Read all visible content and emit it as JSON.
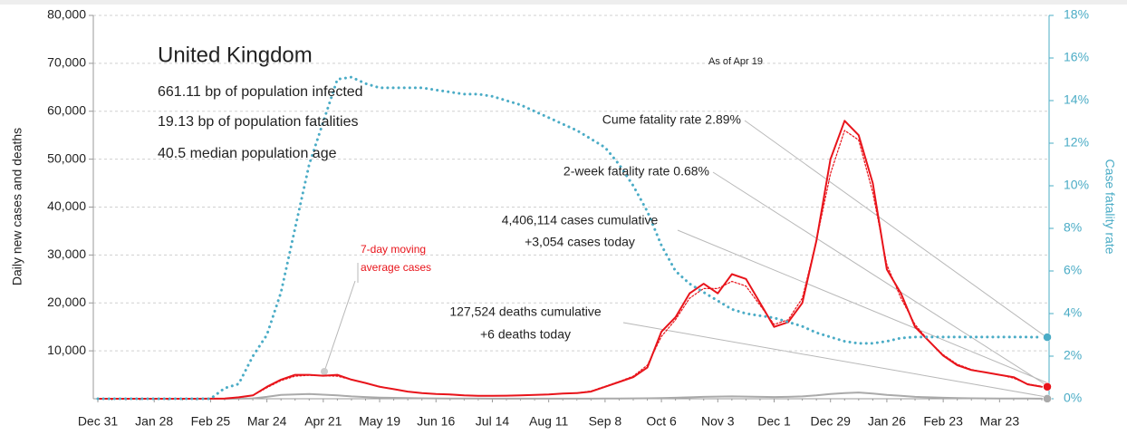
{
  "chart_data": {
    "type": "line",
    "title": "United Kingdom",
    "annotations": [
      "661.11 bp of population infected",
      "19.13 bp of population fatalities",
      "40.5 median population age",
      "As of Apr 19",
      "Cume fatality rate 2.89%",
      "2-week fatality rate 0.68%",
      "4,406,114 cases cumulative",
      "+3,054 cases today",
      "127,524 deaths cumulative",
      "+6 deaths today",
      "7-day moving",
      "average cases"
    ],
    "ylabel": "Daily new cases and deaths",
    "y2label": "Case fatality rate",
    "categories": [
      "Dec 31",
      null,
      null,
      null,
      "Jan 28",
      null,
      null,
      null,
      "Feb 25",
      null,
      null,
      null,
      "Mar 24",
      null,
      null,
      null,
      "Apr 21",
      null,
      null,
      null,
      "May 19",
      null,
      null,
      null,
      "Jun 16",
      null,
      null,
      null,
      "Jul 14",
      null,
      null,
      null,
      "Aug 11",
      null,
      null,
      null,
      "Sep 8",
      null,
      null,
      null,
      "Oct 6",
      null,
      null,
      null,
      "Nov 3",
      null,
      null,
      null,
      "Dec 1",
      null,
      null,
      null,
      "Dec 29",
      null,
      null,
      null,
      "Jan 26",
      null,
      null,
      null,
      "Feb 23",
      null,
      null,
      null,
      "Mar 23",
      null,
      null,
      null
    ],
    "series": [
      {
        "color": "#e8141b",
        "line_style": "solid",
        "axis": "y",
        "values": [
          0,
          0,
          0,
          0,
          0,
          0,
          0,
          0,
          20,
          50,
          300,
          700,
          2500,
          4000,
          5000,
          5000,
          4800,
          5000,
          4000,
          3300,
          2500,
          2000,
          1500,
          1200,
          1000,
          900,
          700,
          600,
          600,
          650,
          700,
          800,
          900,
          1100,
          1200,
          1500,
          2500,
          3500,
          4500,
          6500,
          14000,
          17000,
          22000,
          24000,
          22000,
          26000,
          25000,
          20000,
          15000,
          16000,
          20000,
          33000,
          50000,
          58000,
          55000,
          45000,
          27000,
          22000,
          15000,
          12000,
          9000,
          7000,
          6000,
          5500,
          5000,
          4500,
          3000,
          2500
        ]
      },
      {
        "color": "#e8141b",
        "line_style": "dotted",
        "axis": "y",
        "values": [
          0,
          0,
          0,
          0,
          0,
          0,
          0,
          0,
          15,
          40,
          250,
          650,
          2300,
          3800,
          4700,
          4900,
          4800,
          4700,
          4000,
          3300,
          2600,
          2000,
          1500,
          1200,
          1000,
          850,
          700,
          620,
          620,
          650,
          700,
          800,
          900,
          1050,
          1200,
          1600,
          2600,
          3600,
          4700,
          7000,
          13000,
          16500,
          21000,
          23000,
          23000,
          24500,
          23500,
          19500,
          15500,
          16500,
          21000,
          33000,
          47000,
          56000,
          54000,
          43000,
          28000,
          21000,
          15500,
          12000,
          9200,
          7200,
          6100,
          5500,
          5000,
          4300,
          3100,
          2600
        ]
      },
      {
        "color": "#aaaaaa",
        "line_style": "solid",
        "axis": "y",
        "values": [
          0,
          0,
          0,
          0,
          0,
          0,
          0,
          0,
          0,
          5,
          20,
          80,
          400,
          800,
          900,
          1000,
          850,
          700,
          500,
          350,
          250,
          180,
          130,
          100,
          80,
          60,
          40,
          30,
          20,
          15,
          12,
          10,
          10,
          10,
          12,
          15,
          30,
          50,
          70,
          100,
          150,
          200,
          300,
          400,
          450,
          500,
          450,
          400,
          350,
          400,
          500,
          700,
          1000,
          1200,
          1300,
          1100,
          800,
          600,
          400,
          300,
          200,
          150,
          100,
          70,
          50,
          40,
          30,
          20
        ]
      },
      {
        "color": "#4bacc6",
        "line_style": "dotted",
        "axis": "y2",
        "values": [
          0,
          0,
          0,
          0,
          0,
          0,
          0,
          0,
          0,
          0.5,
          0.7,
          2,
          3,
          5,
          8,
          11,
          13,
          15,
          15.1,
          14.8,
          14.6,
          14.6,
          14.6,
          14.6,
          14.5,
          14.4,
          14.3,
          14.3,
          14.2,
          14.0,
          13.8,
          13.5,
          13.2,
          12.9,
          12.6,
          12.2,
          11.8,
          11.0,
          10.0,
          8.8,
          7.2,
          6.0,
          5.4,
          5.0,
          4.6,
          4.2,
          4.0,
          3.9,
          3.8,
          3.6,
          3.4,
          3.1,
          2.9,
          2.7,
          2.6,
          2.6,
          2.7,
          2.85,
          2.9,
          2.9,
          2.9,
          2.9,
          2.9,
          2.9,
          2.9,
          2.9,
          2.9,
          2.89
        ]
      }
    ],
    "ylim": [
      0,
      80000
    ],
    "yticks": [
      {
        "value": 10000,
        "label": "10,000"
      },
      {
        "value": 20000,
        "label": "20,000"
      },
      {
        "value": 30000,
        "label": "30,000"
      },
      {
        "value": 40000,
        "label": "40,000"
      },
      {
        "value": 50000,
        "label": "50,000"
      },
      {
        "value": 60000,
        "label": "60,000"
      },
      {
        "value": 70000,
        "label": "70,000"
      },
      {
        "value": 80000,
        "label": "80,000"
      }
    ],
    "y2lim": [
      0,
      18
    ],
    "y2ticks": [
      {
        "value": 0,
        "label": "0%"
      },
      {
        "value": 2,
        "label": "2%"
      },
      {
        "value": 4,
        "label": "4%"
      },
      {
        "value": 6,
        "label": "6%"
      },
      {
        "value": 8,
        "label": "8%"
      },
      {
        "value": 10,
        "label": "10%"
      },
      {
        "value": 12,
        "label": "12%"
      },
      {
        "value": 14,
        "label": "14%"
      },
      {
        "value": 16,
        "label": "16%"
      },
      {
        "value": 18,
        "label": "18%"
      }
    ],
    "grid": true
  }
}
